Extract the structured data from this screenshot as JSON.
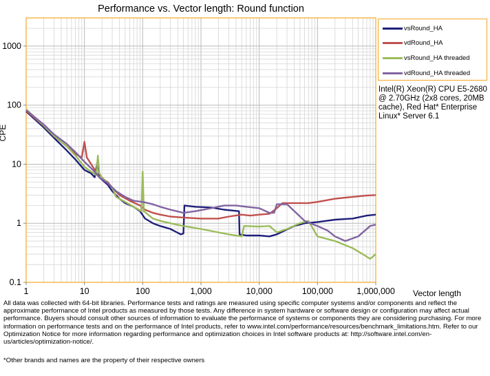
{
  "chart_data": {
    "type": "line",
    "title": "Performance vs. Vector length: Round function",
    "xlabel": "Vector length",
    "ylabel": "CPE",
    "xscale": "log",
    "yscale": "log",
    "xlim": [
      1,
      1000000
    ],
    "ylim": [
      0.1,
      3000
    ],
    "x_ticks": [
      1,
      10,
      100,
      1000,
      10000,
      100000,
      1000000
    ],
    "x_tick_labels": [
      "1",
      "10",
      "100",
      "1,000",
      "10,000",
      "100,000",
      "1,000,000"
    ],
    "y_ticks": [
      0.1,
      1,
      10,
      100,
      1000
    ],
    "y_tick_labels": [
      "0.1",
      "1",
      "10",
      "100",
      "1000"
    ],
    "grid": true,
    "legend_position": "top-right",
    "series": [
      {
        "name": "vsRound_HA",
        "color": "#1f1f7a",
        "points": [
          [
            1,
            78
          ],
          [
            2,
            42
          ],
          [
            3,
            28
          ],
          [
            5,
            17
          ],
          [
            7,
            12
          ],
          [
            10,
            8
          ],
          [
            13,
            7
          ],
          [
            15,
            6
          ],
          [
            17,
            12
          ],
          [
            18,
            6
          ],
          [
            25,
            4.5
          ],
          [
            30,
            3.5
          ],
          [
            40,
            2.6
          ],
          [
            50,
            2.2
          ],
          [
            70,
            1.9
          ],
          [
            90,
            1.6
          ],
          [
            110,
            1.2
          ],
          [
            150,
            1.0
          ],
          [
            200,
            0.9
          ],
          [
            300,
            0.8
          ],
          [
            450,
            0.65
          ],
          [
            500,
            0.67
          ],
          [
            520,
            2.0
          ],
          [
            800,
            1.9
          ],
          [
            1500,
            1.85
          ],
          [
            2500,
            1.7
          ],
          [
            4500,
            1.6
          ],
          [
            4600,
            0.65
          ],
          [
            6000,
            0.62
          ],
          [
            10000,
            0.62
          ],
          [
            15000,
            0.6
          ],
          [
            20000,
            0.65
          ],
          [
            40000,
            0.9
          ],
          [
            60000,
            1.0
          ],
          [
            100000,
            1.05
          ],
          [
            200000,
            1.15
          ],
          [
            400000,
            1.2
          ],
          [
            700000,
            1.35
          ],
          [
            1000000,
            1.4
          ]
        ]
      },
      {
        "name": "vdRound_HA",
        "color": "#c0504d",
        "points": [
          [
            1,
            80
          ],
          [
            2,
            45
          ],
          [
            3,
            30
          ],
          [
            5,
            20
          ],
          [
            7,
            15
          ],
          [
            9,
            13
          ],
          [
            10,
            24
          ],
          [
            11,
            13
          ],
          [
            14,
            9
          ],
          [
            18,
            6
          ],
          [
            25,
            5
          ],
          [
            30,
            4
          ],
          [
            40,
            3
          ],
          [
            60,
            2.4
          ],
          [
            90,
            2.0
          ],
          [
            110,
            1.7
          ],
          [
            150,
            1.5
          ],
          [
            200,
            1.4
          ],
          [
            300,
            1.3
          ],
          [
            500,
            1.25
          ],
          [
            1000,
            1.2
          ],
          [
            2000,
            1.2
          ],
          [
            3000,
            1.3
          ],
          [
            5000,
            1.4
          ],
          [
            7000,
            1.35
          ],
          [
            10000,
            1.4
          ],
          [
            15000,
            1.45
          ],
          [
            20000,
            1.8
          ],
          [
            25000,
            2.2
          ],
          [
            40000,
            2.2
          ],
          [
            70000,
            2.2
          ],
          [
            100000,
            2.3
          ],
          [
            200000,
            2.6
          ],
          [
            400000,
            2.8
          ],
          [
            700000,
            2.95
          ],
          [
            1000000,
            3.0
          ]
        ]
      },
      {
        "name": "vsRound_HA threaded",
        "color": "#9bbb59",
        "points": [
          [
            1,
            85
          ],
          [
            2,
            45
          ],
          [
            3,
            30
          ],
          [
            5,
            20
          ],
          [
            7,
            14
          ],
          [
            10,
            9
          ],
          [
            13,
            7.5
          ],
          [
            16,
            6.5
          ],
          [
            17,
            14
          ],
          [
            18,
            7
          ],
          [
            20,
            6
          ],
          [
            30,
            4
          ],
          [
            35,
            2.8
          ],
          [
            50,
            2.3
          ],
          [
            70,
            1.9
          ],
          [
            95,
            1.6
          ],
          [
            100,
            7.5
          ],
          [
            105,
            1.6
          ],
          [
            150,
            1.2
          ],
          [
            200,
            1.1
          ],
          [
            300,
            1.0
          ],
          [
            500,
            0.9
          ],
          [
            1000,
            0.8
          ],
          [
            2000,
            0.7
          ],
          [
            3000,
            0.65
          ],
          [
            5000,
            0.6
          ],
          [
            5500,
            0.9
          ],
          [
            10000,
            0.88
          ],
          [
            15000,
            0.9
          ],
          [
            20000,
            0.7
          ],
          [
            30000,
            0.8
          ],
          [
            50000,
            1.0
          ],
          [
            70000,
            1.1
          ],
          [
            100000,
            0.6
          ],
          [
            200000,
            0.5
          ],
          [
            400000,
            0.38
          ],
          [
            600000,
            0.3
          ],
          [
            800000,
            0.25
          ],
          [
            1000000,
            0.3
          ]
        ]
      },
      {
        "name": "vdRound_HA threaded",
        "color": "#8064a2",
        "points": [
          [
            1,
            82
          ],
          [
            2,
            47
          ],
          [
            3,
            32
          ],
          [
            5,
            22
          ],
          [
            7,
            16
          ],
          [
            10,
            11
          ],
          [
            14,
            8
          ],
          [
            18,
            6
          ],
          [
            25,
            4.8
          ],
          [
            35,
            3.5
          ],
          [
            50,
            2.8
          ],
          [
            70,
            2.4
          ],
          [
            100,
            2.3
          ],
          [
            150,
            2.1
          ],
          [
            200,
            1.9
          ],
          [
            300,
            1.7
          ],
          [
            500,
            1.5
          ],
          [
            800,
            1.6
          ],
          [
            1500,
            1.8
          ],
          [
            2500,
            2.0
          ],
          [
            4000,
            2.0
          ],
          [
            6000,
            1.9
          ],
          [
            10000,
            1.8
          ],
          [
            15000,
            1.5
          ],
          [
            18000,
            1.5
          ],
          [
            20000,
            2.1
          ],
          [
            30000,
            2.1
          ],
          [
            60000,
            1.1
          ],
          [
            100000,
            0.9
          ],
          [
            150000,
            0.75
          ],
          [
            200000,
            0.6
          ],
          [
            300000,
            0.5
          ],
          [
            500000,
            0.6
          ],
          [
            800000,
            0.9
          ],
          [
            1000000,
            0.95
          ]
        ]
      }
    ]
  },
  "cpu_note": "Intel(R) Xeon(R) CPU E5-2680 @ 2.70GHz (2x8 cores, 20MB cache), Red Hat* Enterprise Linux* Server 6.1",
  "disclaimer": "All data was collected with 64-bit libraries. Performance tests and ratings are measured using specific computer systems and/or components and reflect the approximate performance of Intel products as measured by those tests. Any difference in system hardware or software design or configuration may affect actual performance. Buyers should consult other sources of information to evaluate the performance of systems or components they are considering purchasing. For more information on performance tests and on the performance of Intel products, refer to www.intel.com/performance/resources/benchmark_limitations.htm. Refer to our Optimization Notice for more information regarding performance and optimization choices in Intel software products at: http://software.intel.com/en-us/articles/optimization-notice/.",
  "footnote": "*Other brands and names are the property of their respective owners"
}
